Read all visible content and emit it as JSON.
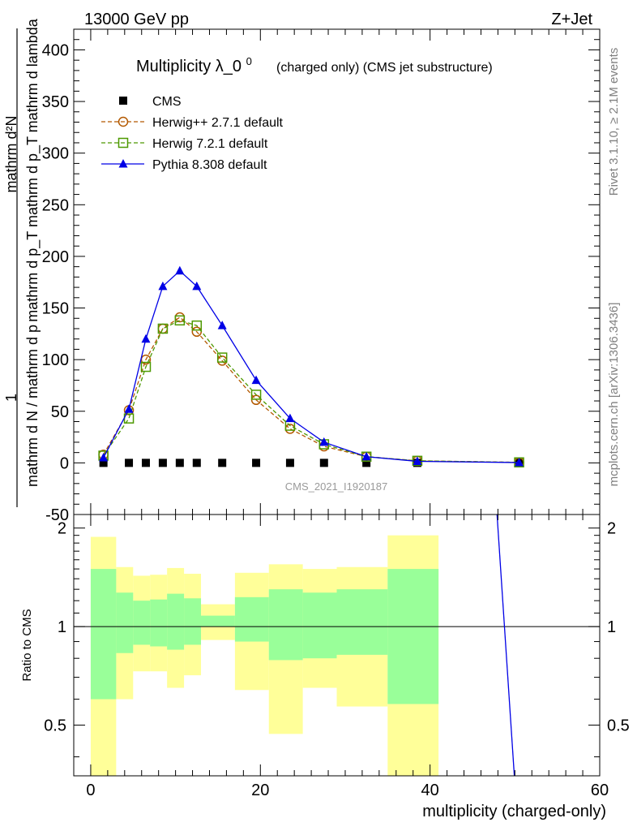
{
  "header": {
    "energy_label": "13000 GeV pp",
    "process_label": "Z+Jet",
    "side_rivet": "Rivet 3.1.10, ≥ 2.1M events",
    "side_mcplots": "mcplots.cern.ch [arXiv:1306.3436]"
  },
  "chart_data": [
    {
      "type": "line",
      "title": "Multiplicity λ_0^0",
      "subtitle": "(charged only) (CMS jet substructure)",
      "ylabel": "1 / mathrm d N / mathrm d p_T mathrm d p_T mathrm d lambda mathrm d^2N",
      "ylabel_parts": {
        "numerator_one": "1",
        "denominator": "mathrm d N / mathrm d p",
        "right_top": "mathrm d²N",
        "right_bottom": "mathrm d p_T mathrm d p_T mathrm d lambda"
      },
      "ylim": [
        -50,
        420
      ],
      "yticks": [
        -50,
        0,
        50,
        100,
        150,
        200,
        250,
        300,
        350,
        400
      ],
      "xlim": [
        -2,
        60
      ],
      "watermark": "CMS_2021_I1920187",
      "legend_position": "top-left",
      "series": [
        {
          "name": "CMS",
          "style": "marker-square",
          "color": "#000000",
          "x": [
            1.5,
            4.5,
            6.5,
            8.5,
            10.5,
            12.5,
            15.5,
            19.5,
            23.5,
            27.5,
            32.5,
            38.5,
            50.5
          ],
          "y": [
            0,
            0,
            0,
            0,
            0,
            0,
            0,
            0,
            0,
            0,
            0,
            0,
            0
          ]
        },
        {
          "name": "Herwig++ 2.7.1 default",
          "style": "dashed-circle",
          "color": "#b35900",
          "x": [
            1.5,
            4.5,
            6.5,
            8.5,
            10.5,
            12.5,
            15.5,
            19.5,
            23.5,
            27.5,
            32.5,
            38.5,
            50.5
          ],
          "y": [
            8,
            51,
            100,
            130,
            141,
            127,
            99,
            61,
            33,
            16,
            6,
            2,
            0.5
          ]
        },
        {
          "name": "Herwig 7.2.1 default",
          "style": "dashed-square",
          "color": "#4d9900",
          "x": [
            1.5,
            4.5,
            6.5,
            8.5,
            10.5,
            12.5,
            15.5,
            19.5,
            23.5,
            27.5,
            32.5,
            38.5,
            50.5
          ],
          "y": [
            7,
            43,
            93,
            130,
            138,
            133,
            102,
            66,
            36,
            18,
            6,
            2,
            0.5
          ]
        },
        {
          "name": "Pythia 8.308 default",
          "style": "solid-triangle",
          "color": "#0000e6",
          "x": [
            1.5,
            4.5,
            6.5,
            8.5,
            10.5,
            12.5,
            15.5,
            19.5,
            23.5,
            27.5,
            32.5,
            38.5,
            50.5
          ],
          "y": [
            5,
            52,
            120,
            171,
            186,
            171,
            133,
            80,
            43,
            20,
            6,
            1.5,
            0.3
          ]
        }
      ]
    },
    {
      "type": "area",
      "ylabel": "Ratio to CMS",
      "xlabel": "multiplicity (charged-only)",
      "xlim": [
        -2,
        60
      ],
      "xticks": [
        0,
        20,
        40,
        60
      ],
      "ylim": [
        0.35,
        2.2
      ],
      "yticks": [
        0.5,
        1,
        2
      ],
      "bands": {
        "bins": [
          [
            0,
            3
          ],
          [
            3,
            5
          ],
          [
            5,
            7
          ],
          [
            7,
            9
          ],
          [
            9,
            11
          ],
          [
            11,
            13
          ],
          [
            13,
            17
          ],
          [
            17,
            21
          ],
          [
            21,
            25
          ],
          [
            25,
            29
          ],
          [
            29,
            35
          ],
          [
            35,
            41
          ]
        ],
        "stat_low": [
          0.6,
          0.83,
          0.88,
          0.87,
          0.85,
          0.88,
          1.0,
          0.9,
          0.79,
          0.8,
          0.82,
          0.58
        ],
        "stat_high": [
          1.5,
          1.27,
          1.2,
          1.21,
          1.26,
          1.22,
          1.08,
          1.23,
          1.3,
          1.27,
          1.3,
          1.5
        ],
        "total_low": [
          0.35,
          0.6,
          0.73,
          0.73,
          0.65,
          0.71,
          0.91,
          0.64,
          0.47,
          0.65,
          0.57,
          0.35
        ],
        "total_high": [
          1.88,
          1.52,
          1.43,
          1.44,
          1.51,
          1.45,
          1.17,
          1.46,
          1.55,
          1.5,
          1.52,
          1.9
        ],
        "stat_color": "#99ff99",
        "total_color": "#ffff99"
      },
      "series": [
        {
          "name": "Pythia 8.308 default",
          "color": "#0000e6",
          "x": [
            47.8,
            50
          ],
          "y": [
            2.4,
            0.33
          ]
        }
      ]
    }
  ]
}
